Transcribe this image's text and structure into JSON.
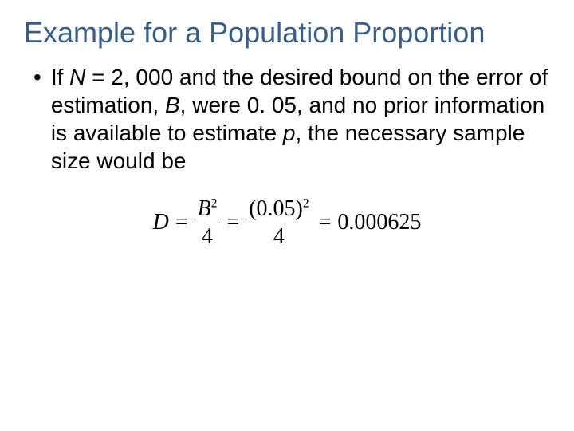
{
  "title": "Example for a Population Proportion",
  "bullet": {
    "marker": "•",
    "text_parts": {
      "p1": "If ",
      "N": "N",
      "p2": " = 2, 000 and the desired bound on the error of estimation, ",
      "B": "B",
      "p3": ", were 0. 05, and no prior information is available to estimate ",
      "p_var": "p",
      "p4": ", the necessary sample size would be"
    }
  },
  "formula": {
    "D": "D",
    "eq1": "=",
    "frac1_num": "B",
    "frac1_num_sup": "2",
    "frac1_den": "4",
    "eq2": "=",
    "frac2_num": "(0.05)",
    "frac2_num_sup": "2",
    "frac2_den": "4",
    "eq3": "=",
    "result": "0.000625"
  },
  "colors": {
    "title": "#385d8a",
    "text": "#000000",
    "background": "#ffffff"
  }
}
